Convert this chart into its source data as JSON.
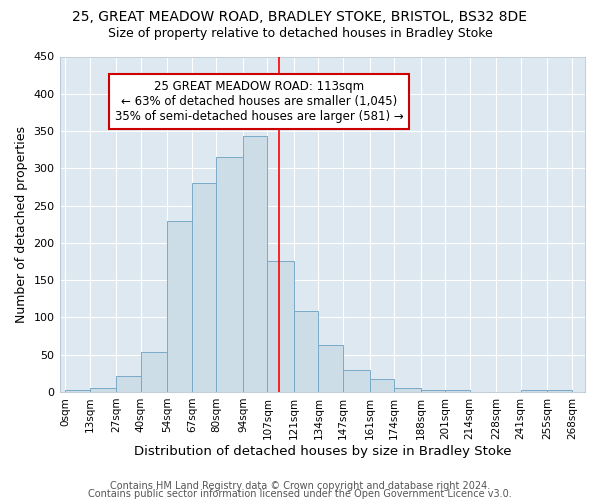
{
  "title1": "25, GREAT MEADOW ROAD, BRADLEY STOKE, BRISTOL, BS32 8DE",
  "title2": "Size of property relative to detached houses in Bradley Stoke",
  "xlabel": "Distribution of detached houses by size in Bradley Stoke",
  "ylabel": "Number of detached properties",
  "bar_color": "#ccdde8",
  "bar_edge_color": "#7aaac8",
  "bar_left_edges": [
    0,
    13,
    27,
    40,
    54,
    67,
    80,
    94,
    107,
    121,
    134,
    147,
    161,
    174,
    188,
    201,
    214,
    228,
    241,
    255
  ],
  "bar_widths": [
    13,
    14,
    13,
    14,
    13,
    13,
    14,
    13,
    14,
    13,
    13,
    14,
    13,
    14,
    13,
    13,
    14,
    13,
    14,
    13
  ],
  "bar_heights": [
    2,
    5,
    22,
    54,
    230,
    280,
    315,
    343,
    176,
    109,
    63,
    30,
    18,
    5,
    3,
    2,
    0,
    0,
    3,
    2
  ],
  "tick_labels": [
    "0sqm",
    "13sqm",
    "27sqm",
    "40sqm",
    "54sqm",
    "67sqm",
    "80sqm",
    "94sqm",
    "107sqm",
    "121sqm",
    "134sqm",
    "147sqm",
    "161sqm",
    "174sqm",
    "188sqm",
    "201sqm",
    "214sqm",
    "228sqm",
    "241sqm",
    "255sqm",
    "268sqm"
  ],
  "tick_positions": [
    0,
    13,
    27,
    40,
    54,
    67,
    80,
    94,
    107,
    121,
    134,
    147,
    161,
    174,
    188,
    201,
    214,
    228,
    241,
    255,
    268
  ],
  "vline_x": 113,
  "vline_color": "red",
  "ylim": [
    0,
    450
  ],
  "xlim": [
    -3,
    275
  ],
  "annotation_text": "25 GREAT MEADOW ROAD: 113sqm\n← 63% of detached houses are smaller (1,045)\n35% of semi-detached houses are larger (581) →",
  "annotation_box_color": "#ffffff",
  "annotation_border_color": "#cc0000",
  "footer1": "Contains HM Land Registry data © Crown copyright and database right 2024.",
  "footer2": "Contains public sector information licensed under the Open Government Licence v3.0.",
  "plot_bg_color": "#dde8f0",
  "fig_bg_color": "#ffffff",
  "grid_color": "#ffffff",
  "title1_fontsize": 10,
  "title2_fontsize": 9,
  "xlabel_fontsize": 9.5,
  "ylabel_fontsize": 9,
  "tick_fontsize": 7.5,
  "annotation_fontsize": 8.5,
  "footer_fontsize": 7
}
